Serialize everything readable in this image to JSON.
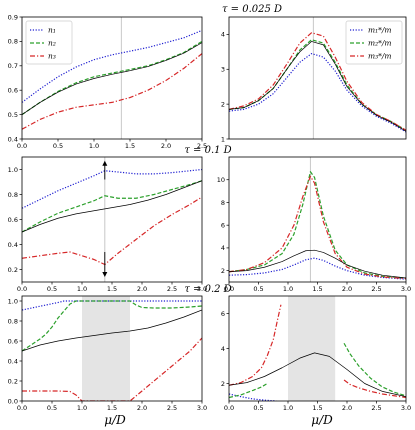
{
  "colors": {
    "n1": "#1f1fd1",
    "n2": "#2ca02c",
    "n3": "#d62728",
    "ref": "#000000",
    "shade": "#e4e4e4",
    "vline": "#c8c8c8"
  },
  "row_titles": [
    "τ = 0.025 D",
    "τ = 0.1 D",
    "τ = 0.2 D"
  ],
  "xlabel": "μ/D",
  "chart_data": [
    {
      "type": "line",
      "row": 0,
      "col": 0,
      "title": "τ = 0.025 D",
      "xlabel": "",
      "ylabel": "",
      "xlim": [
        0,
        2.5
      ],
      "ylim": [
        0.4,
        0.9
      ],
      "xticks": [
        0,
        0.5,
        1,
        1.5,
        2,
        2.5
      ],
      "xticklabels": [
        "0.0",
        "0.5",
        "1.0",
        "1.5",
        "2.0",
        "2.5"
      ],
      "yticks": [
        0.4,
        0.5,
        0.6,
        0.7,
        0.8,
        0.9
      ],
      "yticklabels": [
        "0.4",
        "0.5",
        "0.6",
        "0.7",
        "0.8",
        "0.9"
      ],
      "vline": 1.38,
      "legend": "top-left",
      "series": [
        {
          "name": "n₁",
          "key": "n1",
          "style": "dotted",
          "x": [
            0,
            0.25,
            0.5,
            0.75,
            1,
            1.25,
            1.5,
            1.75,
            2,
            2.25,
            2.5
          ],
          "y": [
            0.55,
            0.605,
            0.655,
            0.695,
            0.725,
            0.745,
            0.76,
            0.775,
            0.795,
            0.815,
            0.845
          ]
        },
        {
          "name": "n₂",
          "key": "n2",
          "style": "dashed",
          "x": [
            0,
            0.25,
            0.5,
            0.75,
            1,
            1.25,
            1.5,
            1.75,
            2,
            2.25,
            2.5
          ],
          "y": [
            0.5,
            0.55,
            0.595,
            0.63,
            0.655,
            0.67,
            0.685,
            0.7,
            0.725,
            0.755,
            0.8
          ]
        },
        {
          "name": "n₃",
          "key": "n3",
          "style": "dashdot",
          "x": [
            0,
            0.25,
            0.5,
            0.75,
            1,
            1.25,
            1.5,
            1.75,
            2,
            2.25,
            2.5
          ],
          "y": [
            0.44,
            0.48,
            0.51,
            0.53,
            0.54,
            0.55,
            0.57,
            0.6,
            0.64,
            0.69,
            0.75
          ]
        },
        {
          "name": "",
          "key": "ref",
          "style": "solid",
          "x": [
            0,
            0.25,
            0.5,
            0.75,
            1,
            1.25,
            1.5,
            1.75,
            2,
            2.25,
            2.5
          ],
          "y": [
            0.5,
            0.55,
            0.592,
            0.625,
            0.648,
            0.665,
            0.68,
            0.697,
            0.722,
            0.752,
            0.795
          ]
        }
      ]
    },
    {
      "type": "line",
      "row": 0,
      "col": 1,
      "title": "",
      "xlabel": "",
      "ylabel": "",
      "xlim": [
        0,
        3
      ],
      "ylim": [
        1,
        4.5
      ],
      "xticks": [],
      "xticklabels": [],
      "yticks": [
        1,
        2,
        3,
        4
      ],
      "yticklabels": [
        "1",
        "2",
        "3",
        "4"
      ],
      "vline": 1.43,
      "legend": "top-right",
      "series": [
        {
          "name": "m₁*/m",
          "key": "n1",
          "style": "dotted",
          "x": [
            0,
            0.25,
            0.5,
            0.75,
            1,
            1.2,
            1.4,
            1.6,
            1.8,
            2,
            2.25,
            2.5,
            2.75,
            3
          ],
          "y": [
            1.8,
            1.85,
            2.0,
            2.3,
            2.8,
            3.2,
            3.45,
            3.35,
            2.95,
            2.4,
            1.95,
            1.65,
            1.45,
            1.2
          ]
        },
        {
          "name": "m₂*/m",
          "key": "n2",
          "style": "dashed",
          "x": [
            0,
            0.25,
            0.5,
            0.75,
            1,
            1.2,
            1.4,
            1.6,
            1.8,
            2,
            2.25,
            2.5,
            2.75,
            3
          ],
          "y": [
            1.85,
            1.9,
            2.1,
            2.45,
            3.05,
            3.55,
            3.85,
            3.75,
            3.2,
            2.55,
            2.0,
            1.7,
            1.5,
            1.25
          ]
        },
        {
          "name": "m₃*/m",
          "key": "n3",
          "style": "dashdot",
          "x": [
            0,
            0.25,
            0.5,
            0.75,
            1,
            1.2,
            1.4,
            1.6,
            1.8,
            2,
            2.25,
            2.5,
            2.75,
            3
          ],
          "y": [
            1.85,
            1.95,
            2.15,
            2.55,
            3.2,
            3.75,
            4.05,
            3.95,
            3.35,
            2.65,
            2.05,
            1.7,
            1.5,
            1.25
          ]
        },
        {
          "name": "",
          "key": "ref",
          "style": "solid",
          "x": [
            0,
            0.25,
            0.5,
            0.75,
            1,
            1.2,
            1.4,
            1.6,
            1.8,
            2,
            2.25,
            2.5,
            2.75,
            3
          ],
          "y": [
            1.85,
            1.9,
            2.1,
            2.45,
            3.05,
            3.5,
            3.8,
            3.7,
            3.15,
            2.5,
            2.0,
            1.68,
            1.48,
            1.22
          ]
        }
      ]
    },
    {
      "type": "line",
      "row": 1,
      "col": 0,
      "title": "τ = 0.1 D",
      "xlabel": "",
      "ylabel": "",
      "xlim": [
        0,
        3
      ],
      "ylim": [
        0.1,
        1.1
      ],
      "xticks": [
        0,
        0.5,
        1,
        1.5,
        2,
        2.5,
        3
      ],
      "xticklabels": [
        "0.0",
        "0.5",
        "1.0",
        "1.5",
        "2.0",
        "2.5",
        "3.0"
      ],
      "yticks": [
        0.2,
        0.4,
        0.6,
        0.8,
        1.0
      ],
      "yticklabels": [
        "0.2",
        "0.4",
        "0.6",
        "0.8",
        "1.0"
      ],
      "vline": 1.38,
      "arrows": [
        {
          "x": 1.38,
          "from": 0.92,
          "to": 1.07
        },
        {
          "x": 1.38,
          "from": 0.34,
          "to": 0.14
        }
      ],
      "series": [
        {
          "name": "",
          "key": "n1",
          "style": "dotted",
          "x": [
            0,
            0.3,
            0.6,
            0.9,
            1.2,
            1.38,
            1.6,
            1.9,
            2.2,
            2.5,
            2.8,
            3
          ],
          "y": [
            0.69,
            0.76,
            0.83,
            0.89,
            0.95,
            0.99,
            0.98,
            0.965,
            0.965,
            0.975,
            0.99,
            1.0
          ]
        },
        {
          "name": "",
          "key": "n2",
          "style": "dashed",
          "x": [
            0,
            0.3,
            0.6,
            0.9,
            1.2,
            1.38,
            1.6,
            1.9,
            2.2,
            2.5,
            2.8,
            3
          ],
          "y": [
            0.5,
            0.58,
            0.65,
            0.7,
            0.75,
            0.79,
            0.77,
            0.77,
            0.8,
            0.84,
            0.88,
            0.91
          ]
        },
        {
          "name": "",
          "key": "n3",
          "style": "dashdot",
          "x": [
            0,
            0.3,
            0.6,
            0.8,
            1.0,
            1.2,
            1.38,
            1.6,
            1.9,
            2.2,
            2.5,
            2.8,
            3
          ],
          "y": [
            0.29,
            0.31,
            0.33,
            0.34,
            0.31,
            0.28,
            0.24,
            0.33,
            0.44,
            0.55,
            0.64,
            0.72,
            0.78
          ]
        },
        {
          "name": "",
          "key": "ref",
          "style": "solid",
          "x": [
            0,
            0.3,
            0.6,
            0.9,
            1.2,
            1.5,
            1.8,
            2.1,
            2.4,
            2.7,
            3
          ],
          "y": [
            0.5,
            0.56,
            0.61,
            0.645,
            0.67,
            0.695,
            0.72,
            0.755,
            0.8,
            0.855,
            0.91
          ]
        }
      ]
    },
    {
      "type": "line",
      "row": 1,
      "col": 1,
      "title": "",
      "xlabel": "",
      "ylabel": "",
      "xlim": [
        0,
        3
      ],
      "ylim": [
        1,
        12
      ],
      "xticks": [
        0,
        0.5,
        1,
        1.5,
        2,
        2.5,
        3
      ],
      "xticklabels": [
        "0.0",
        "0.5",
        "1.0",
        "1.5",
        "2.0",
        "2.5",
        "3.0"
      ],
      "yticks": [
        2,
        4,
        6,
        8,
        10
      ],
      "yticklabels": [
        "2",
        "4",
        "6",
        "8",
        "10"
      ],
      "vline": 1.38,
      "series": [
        {
          "name": "",
          "key": "n1",
          "style": "dotted",
          "x": [
            0,
            0.3,
            0.6,
            0.9,
            1.1,
            1.3,
            1.45,
            1.6,
            1.8,
            2,
            2.3,
            2.6,
            3
          ],
          "y": [
            1.6,
            1.65,
            1.8,
            2.1,
            2.5,
            2.95,
            3.1,
            2.9,
            2.4,
            2.0,
            1.6,
            1.4,
            1.25
          ]
        },
        {
          "name": "",
          "key": "n2",
          "style": "dashed",
          "x": [
            0,
            0.3,
            0.6,
            0.9,
            1.1,
            1.25,
            1.38,
            1.45,
            1.6,
            1.8,
            2,
            2.3,
            2.6,
            3
          ],
          "y": [
            1.9,
            2.1,
            2.5,
            3.5,
            5.2,
            7.8,
            10.7,
            10.2,
            6.8,
            3.8,
            2.5,
            1.8,
            1.5,
            1.35
          ]
        },
        {
          "name": "",
          "key": "n3",
          "style": "dashdot",
          "x": [
            0,
            0.3,
            0.6,
            0.9,
            1.1,
            1.25,
            1.38,
            1.45,
            1.6,
            1.8,
            2,
            2.3,
            2.6,
            3
          ],
          "y": [
            1.9,
            2.1,
            2.7,
            4.0,
            6.0,
            8.5,
            10.3,
            9.7,
            6.3,
            3.5,
            2.3,
            1.7,
            1.45,
            1.3
          ]
        },
        {
          "name": "",
          "key": "ref",
          "style": "solid",
          "x": [
            0,
            0.3,
            0.6,
            0.9,
            1.1,
            1.3,
            1.45,
            1.6,
            1.8,
            2,
            2.3,
            2.6,
            3
          ],
          "y": [
            1.9,
            2.0,
            2.3,
            2.8,
            3.3,
            3.75,
            3.8,
            3.6,
            3.1,
            2.5,
            1.95,
            1.6,
            1.35
          ]
        }
      ]
    },
    {
      "type": "line",
      "row": 2,
      "col": 0,
      "title": "τ = 0.2 D",
      "xlabel": "μ/D",
      "ylabel": "",
      "xlim": [
        0,
        3
      ],
      "ylim": [
        0,
        1.05
      ],
      "xticks": [
        0,
        0.5,
        1,
        1.5,
        2,
        2.5,
        3
      ],
      "xticklabels": [
        "0.0",
        "0.5",
        "1.0",
        "1.5",
        "2.0",
        "2.5",
        "3.0"
      ],
      "yticks": [
        0,
        0.2,
        0.4,
        0.6,
        0.8,
        1.0
      ],
      "yticklabels": [
        "0.0",
        "0.2",
        "0.4",
        "0.6",
        "0.8",
        "1.0"
      ],
      "shade": [
        1.0,
        1.8
      ],
      "series": [
        {
          "name": "",
          "key": "n1",
          "style": "dotted",
          "x": [
            0,
            0.2,
            0.4,
            0.6,
            0.7,
            0.8,
            1.8,
            2.2,
            2.6,
            3
          ],
          "y": [
            0.91,
            0.935,
            0.96,
            0.985,
            1.0,
            1.0,
            1.0,
            1.0,
            1.0,
            1.0
          ]
        },
        {
          "name": "",
          "key": "n2",
          "style": "dashed",
          "x": [
            0,
            0.1,
            0.2,
            0.3,
            0.4,
            0.5,
            0.6,
            0.7,
            0.8,
            0.9,
            1.8,
            1.9,
            2.0,
            2.2,
            2.5,
            2.8,
            3
          ],
          "y": [
            0.5,
            0.54,
            0.58,
            0.62,
            0.67,
            0.74,
            0.83,
            0.9,
            0.97,
            1.0,
            1.0,
            0.96,
            0.935,
            0.93,
            0.93,
            0.94,
            0.95
          ]
        },
        {
          "name": "",
          "key": "n3",
          "style": "dashdot",
          "x": [
            0,
            0.3,
            0.6,
            0.8,
            0.9,
            1.0,
            1.8,
            1.9,
            2.0,
            2.2,
            2.5,
            2.8,
            3
          ],
          "y": [
            0.1,
            0.1,
            0.1,
            0.095,
            0.06,
            0.0,
            0.0,
            0.05,
            0.1,
            0.2,
            0.35,
            0.5,
            0.63
          ]
        },
        {
          "name": "",
          "key": "ref",
          "style": "solid",
          "x": [
            0,
            0.3,
            0.6,
            0.9,
            1.2,
            1.5,
            1.8,
            2.1,
            2.4,
            2.7,
            3
          ],
          "y": [
            0.5,
            0.56,
            0.6,
            0.63,
            0.655,
            0.68,
            0.7,
            0.73,
            0.78,
            0.84,
            0.91
          ]
        }
      ]
    },
    {
      "type": "line",
      "row": 2,
      "col": 1,
      "title": "",
      "xlabel": "μ/D",
      "ylabel": "",
      "xlim": [
        0,
        3
      ],
      "ylim": [
        1,
        7
      ],
      "xticks": [
        0,
        0.5,
        1,
        1.5,
        2,
        2.5,
        3
      ],
      "xticklabels": [
        "0.0",
        "0.5",
        "1.0",
        "1.5",
        "2.0",
        "2.5",
        "3.0"
      ],
      "yticks": [
        2,
        4,
        6
      ],
      "yticklabels": [
        "2",
        "4",
        "6"
      ],
      "shade": [
        1.0,
        1.8
      ],
      "series": [
        {
          "name": "",
          "key": "n1",
          "style": "dotted",
          "x": [
            0,
            0.2,
            0.4,
            0.6,
            0.8
          ],
          "y": [
            1.4,
            1.25,
            1.12,
            1.05,
            1.0
          ]
        },
        {
          "name": "",
          "key": "n2",
          "style": "dashed",
          "x": [
            0,
            0.2,
            0.4,
            0.55,
            0.65
          ],
          "y": [
            1.2,
            1.35,
            1.6,
            1.8,
            2.0
          ],
          "x2": [
            1.95,
            2.05,
            2.2,
            2.4,
            2.6,
            2.8,
            3
          ],
          "y2": [
            4.3,
            3.7,
            3.0,
            2.3,
            1.8,
            1.5,
            1.3
          ]
        },
        {
          "name": "",
          "key": "n3",
          "style": "dashdot",
          "x": [
            0,
            0.2,
            0.4,
            0.55,
            0.65,
            0.75,
            0.82,
            0.88
          ],
          "y": [
            1.9,
            2.05,
            2.4,
            2.9,
            3.6,
            4.5,
            5.6,
            6.5
          ],
          "x2": [
            1.95,
            2.05,
            2.2,
            2.4,
            2.6,
            2.8,
            3
          ],
          "y2": [
            2.2,
            1.95,
            1.75,
            1.55,
            1.4,
            1.3,
            1.2
          ]
        },
        {
          "name": "",
          "key": "ref",
          "style": "solid",
          "x": [
            0,
            0.3,
            0.6,
            0.9,
            1.2,
            1.45,
            1.7,
            2.0,
            2.3,
            2.6,
            3
          ],
          "y": [
            1.9,
            2.05,
            2.4,
            2.9,
            3.45,
            3.75,
            3.55,
            2.8,
            2.0,
            1.55,
            1.25
          ]
        }
      ]
    }
  ]
}
